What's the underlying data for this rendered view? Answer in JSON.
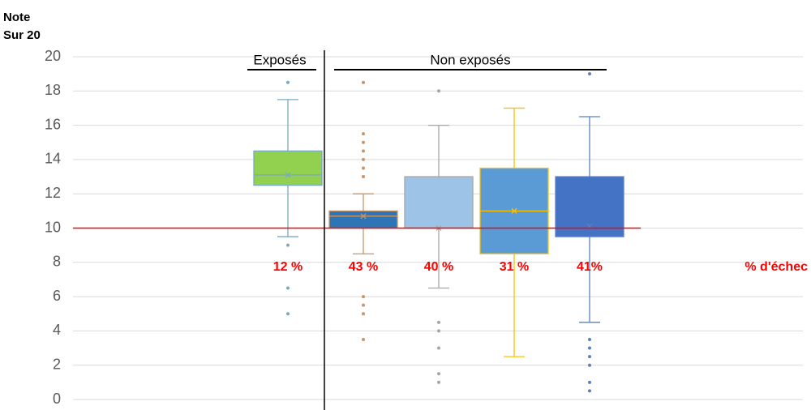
{
  "chart_data": {
    "type": "box",
    "y_axis_label": [
      "Note",
      "Sur 20"
    ],
    "ylim": [
      0,
      20
    ],
    "yticks": [
      0,
      2,
      4,
      6,
      8,
      10,
      12,
      14,
      16,
      18,
      20
    ],
    "grid": true,
    "group_labels": [
      "Exposés",
      "Non exposés"
    ],
    "threshold": 10,
    "threshold_color": "#ff0000",
    "boxes": [
      {
        "color": "#92d050",
        "line_color": "#7aa9c4",
        "whisker_low": 9.5,
        "q1": 12.5,
        "median": 13.1,
        "q3": 14.5,
        "whisker_high": 17.5,
        "mean": 13.1,
        "outliers": [
          18.5,
          9,
          6.5,
          5
        ]
      },
      {
        "color": "#2e75b6",
        "line_color": "#c8946a",
        "whisker_low": 8.5,
        "q1": 10,
        "median": 10.7,
        "q3": 11,
        "whisker_high": 12,
        "mean": 10.7,
        "outliers": [
          18.5,
          15.5,
          15,
          14.5,
          14,
          13.5,
          13,
          6,
          5.5,
          5,
          3.5
        ]
      },
      {
        "color": "#9dc3e6",
        "line_color": "#a6a6a6",
        "whisker_low": 6.5,
        "q1": 10,
        "median": 10,
        "q3": 13,
        "whisker_high": 16,
        "mean": 10,
        "outliers": [
          18,
          4.5,
          4,
          3,
          1.5,
          1
        ]
      },
      {
        "color": "#5b9bd5",
        "line_color": "#ffc000",
        "whisker_low": 2.5,
        "q1": 8.5,
        "median": 11,
        "q3": 13.5,
        "whisker_high": 17,
        "mean": 11,
        "outliers": []
      },
      {
        "color": "#4472c4",
        "line_color": "#5b7fc2",
        "whisker_low": 4.5,
        "q1": 9.5,
        "median": 10,
        "q3": 13,
        "whisker_high": 16.5,
        "mean": 10.1,
        "outliers": [
          19,
          3.5,
          3,
          2.5,
          2,
          1,
          0.5
        ]
      }
    ],
    "failure_rates": [
      12,
      43,
      40,
      31,
      41
    ],
    "value_labels": [
      "12 %",
      "43 %",
      "40 %",
      "31 %",
      "41%"
    ],
    "failure_label_title": "% d'échec"
  }
}
